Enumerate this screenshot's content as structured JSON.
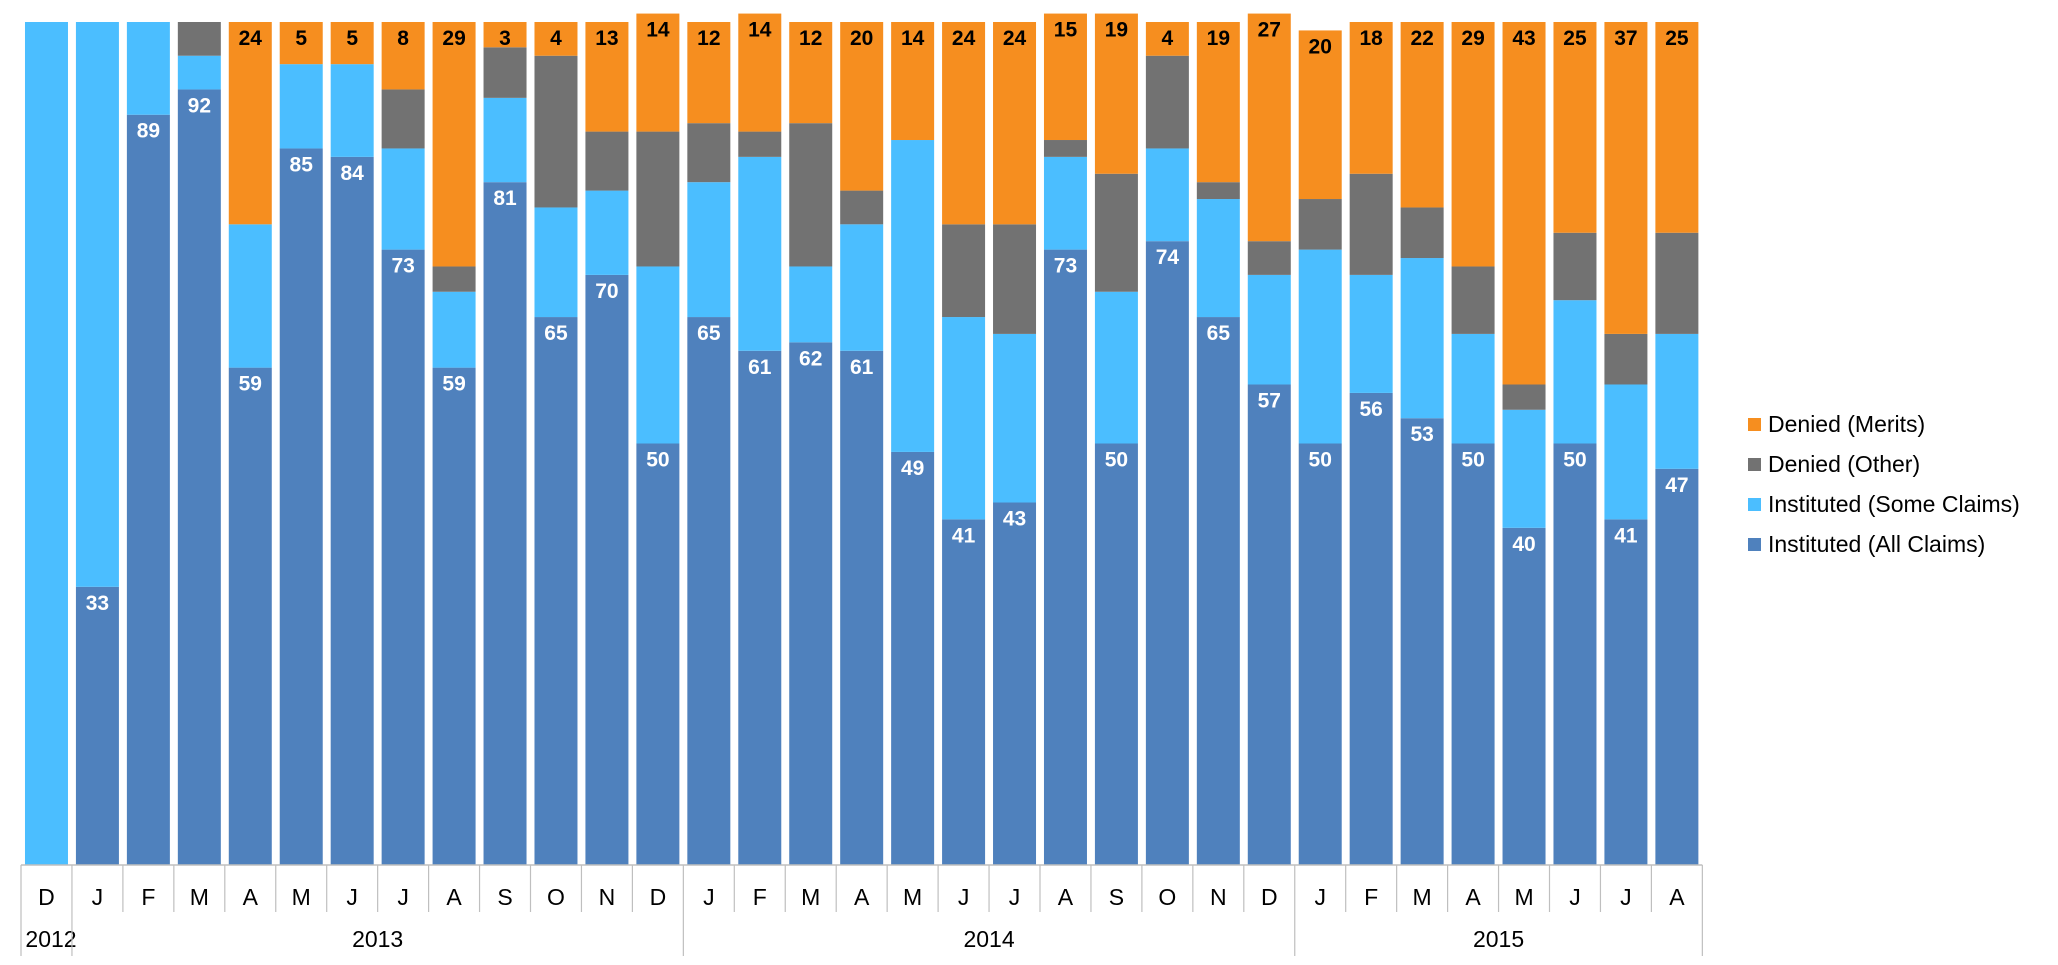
{
  "chart_data": {
    "type": "bar",
    "stacked": true,
    "percent_stacked": true,
    "categories": [
      "D",
      "J",
      "F",
      "M",
      "A",
      "M",
      "J",
      "J",
      "A",
      "S",
      "O",
      "N",
      "D",
      "J",
      "F",
      "M",
      "A",
      "M",
      "J",
      "J",
      "A",
      "S",
      "O",
      "N",
      "D",
      "J",
      "F",
      "M",
      "A",
      "M",
      "J",
      "J",
      "A"
    ],
    "year_groups": [
      {
        "label": "2012",
        "count": 1
      },
      {
        "label": "2013",
        "count": 12
      },
      {
        "label": "2014",
        "count": 12
      },
      {
        "label": "2015",
        "count": 8
      }
    ],
    "series": [
      {
        "name": "Instituted (All Claims)",
        "color": "#4f81bd",
        "label_color": "#ffffff",
        "values": [
          0,
          33,
          89,
          92,
          59,
          85,
          84,
          73,
          59,
          81,
          65,
          70,
          50,
          65,
          61,
          62,
          61,
          49,
          41,
          43,
          73,
          50,
          74,
          65,
          57,
          50,
          56,
          53,
          50,
          40,
          50,
          41,
          47
        ],
        "labels": [
          null,
          "33",
          "89",
          "92",
          "59",
          "85",
          "84",
          "73",
          "59",
          "81",
          "65",
          "70",
          "50",
          "65",
          "61",
          "62",
          "61",
          "49",
          "41",
          "43",
          "73",
          "50",
          "74",
          "65",
          "57",
          "50",
          "56",
          "53",
          "50",
          "40",
          "50",
          "41",
          "47"
        ]
      },
      {
        "name": "Instituted (Some Claims)",
        "color": "#4bbeff",
        "label_color": "#ffffff",
        "values": [
          100,
          67,
          11,
          4,
          17,
          10,
          11,
          12,
          9,
          10,
          13,
          10,
          21,
          16,
          23,
          9,
          15,
          37,
          24,
          20,
          11,
          18,
          11,
          14,
          13,
          23,
          14,
          19,
          13,
          14,
          17,
          16,
          16
        ],
        "labels": [
          null,
          null,
          null,
          null,
          null,
          null,
          null,
          null,
          null,
          null,
          null,
          null,
          null,
          null,
          null,
          null,
          null,
          null,
          null,
          null,
          null,
          null,
          null,
          null,
          null,
          null,
          null,
          null,
          null,
          null,
          null,
          null,
          null
        ]
      },
      {
        "name": "Denied (Other)",
        "color": "#727272",
        "label_color": "#000000",
        "values": [
          0,
          0,
          0,
          4,
          0,
          0,
          0,
          7,
          3,
          6,
          18,
          7,
          16,
          7,
          3,
          17,
          4,
          0,
          11,
          13,
          2,
          14,
          11,
          2,
          4,
          6,
          12,
          6,
          8,
          3,
          8,
          6,
          12
        ],
        "labels": [
          null,
          null,
          null,
          null,
          null,
          null,
          null,
          null,
          null,
          null,
          null,
          null,
          null,
          null,
          null,
          null,
          null,
          null,
          null,
          null,
          null,
          null,
          null,
          null,
          null,
          null,
          null,
          null,
          null,
          null,
          null,
          null,
          null
        ]
      },
      {
        "name": "Denied (Merits)",
        "color": "#f68e1f",
        "label_color": "#000000",
        "values": [
          0,
          0,
          0,
          0,
          24,
          5,
          5,
          8,
          29,
          3,
          4,
          13,
          14,
          12,
          14,
          12,
          20,
          14,
          24,
          24,
          15,
          19,
          4,
          19,
          27,
          20,
          18,
          22,
          29,
          43,
          25,
          37,
          25
        ],
        "labels": [
          null,
          null,
          null,
          null,
          "24",
          "5",
          "5",
          "8",
          "29",
          "3",
          "4",
          "13",
          "14",
          "12",
          "14",
          "12",
          "20",
          "14",
          "24",
          "24",
          "15",
          "19",
          "4",
          "19",
          "27",
          "20",
          "18",
          "22",
          "29",
          "43",
          "25",
          "37",
          "25"
        ]
      }
    ],
    "legend_order": [
      "Denied (Merits)",
      "Denied (Other)",
      "Instituted (Some Claims)",
      "Instituted (All Claims)"
    ],
    "legend_position": "right",
    "ylim": [
      0,
      100
    ],
    "grid": false,
    "y_axis_visible": false,
    "title": "",
    "xlabel": "",
    "ylabel": ""
  }
}
